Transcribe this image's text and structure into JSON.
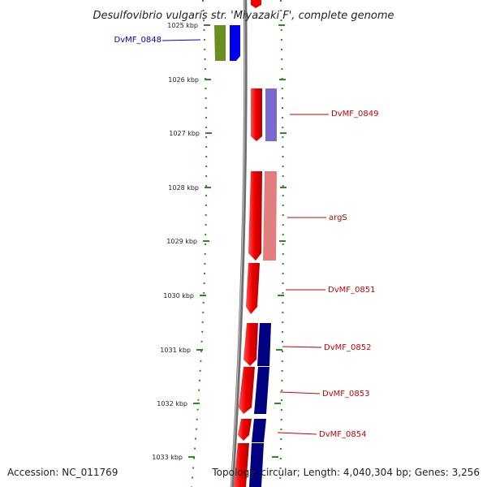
{
  "title": "Desulfovibrio vulgaris str. 'Miyazaki F', complete genome",
  "footer": {
    "accession": "Accession: NC_011769",
    "topology": "Topology: circular; Length: 4,040,304 bp; Genes: 3,256"
  },
  "colors": {
    "backbone": "#777777",
    "tick": "#2e8b22",
    "label_blue": "#0000cc",
    "label_red": "#cc0000"
  },
  "ticks": [
    {
      "label": "1025 kbp"
    },
    {
      "label": "1026 kbp"
    },
    {
      "label": "1027 kbp"
    },
    {
      "label": "1028 kbp"
    },
    {
      "label": "1029 kbp"
    },
    {
      "label": "1030 kbp"
    },
    {
      "label": "1031 kbp"
    },
    {
      "label": "1032 kbp"
    },
    {
      "label": "1033 kbp"
    }
  ],
  "genes": [
    {
      "name": "DvMF_0848",
      "strand": "reverse",
      "color": "#0000ee",
      "cog_color": "#6b8e23"
    },
    {
      "name": "DvMF_0849",
      "strand": "forward",
      "color": "#ee0000",
      "cog_color": "#6a5acd"
    },
    {
      "name": "argS",
      "strand": "forward",
      "color": "#ee0000",
      "cog_color": "#e07070"
    },
    {
      "name": "DvMF_0851",
      "strand": "forward",
      "color": "#ee0000",
      "cog_color": ""
    },
    {
      "name": "DvMF_0852",
      "strand": "forward",
      "color": "#ee0000",
      "cog_color": "#000080"
    },
    {
      "name": "DvMF_0853",
      "strand": "forward",
      "color": "#ee0000",
      "cog_color": "#000080"
    },
    {
      "name": "DvMF_0854",
      "strand": "forward",
      "color": "#ee0000",
      "cog_color": "#000080"
    }
  ]
}
